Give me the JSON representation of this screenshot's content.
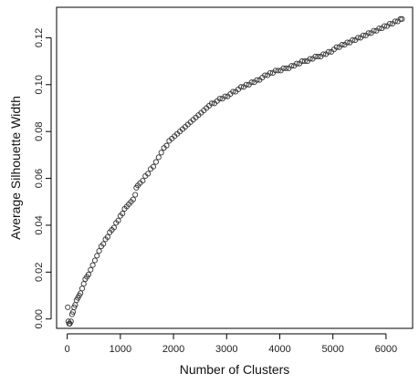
{
  "chart_data": {
    "type": "scatter",
    "title": "",
    "xlabel": "Number of Clusters",
    "ylabel": "Average Silhouette Width",
    "xlim": [
      -200,
      6500
    ],
    "ylim": [
      -0.004,
      0.133
    ],
    "x_ticks": [
      0,
      1000,
      2000,
      3000,
      4000,
      5000,
      6000
    ],
    "y_ticks": [
      0.0,
      0.02,
      0.04,
      0.06,
      0.08,
      0.1,
      0.12
    ],
    "x_tick_labels": [
      "0",
      "1000",
      "2000",
      "3000",
      "4000",
      "5000",
      "6000"
    ],
    "y_tick_labels": [
      "0.00",
      "0.02",
      "0.04",
      "0.06",
      "0.08",
      "0.10",
      "0.12"
    ],
    "grid": false,
    "legend": "none",
    "marker": "open-circle",
    "marker_color": "#333333",
    "series": [
      {
        "values": [
          [
            10,
            0.005
          ],
          [
            20,
            -0.001
          ],
          [
            35,
            -0.002
          ],
          [
            50,
            -0.002
          ],
          [
            70,
            -0.001
          ],
          [
            90,
            0.002
          ],
          [
            110,
            0.003
          ],
          [
            130,
            0.005
          ],
          [
            150,
            0.006
          ],
          [
            175,
            0.008
          ],
          [
            200,
            0.009
          ],
          [
            225,
            0.01
          ],
          [
            250,
            0.011
          ],
          [
            280,
            0.013
          ],
          [
            310,
            0.015
          ],
          [
            340,
            0.017
          ],
          [
            370,
            0.018
          ],
          [
            400,
            0.019
          ],
          [
            440,
            0.021
          ],
          [
            480,
            0.023
          ],
          [
            520,
            0.025
          ],
          [
            560,
            0.027
          ],
          [
            600,
            0.029
          ],
          [
            640,
            0.031
          ],
          [
            680,
            0.032
          ],
          [
            720,
            0.034
          ],
          [
            760,
            0.035
          ],
          [
            800,
            0.037
          ],
          [
            840,
            0.038
          ],
          [
            880,
            0.039
          ],
          [
            920,
            0.041
          ],
          [
            960,
            0.042
          ],
          [
            1000,
            0.044
          ],
          [
            1040,
            0.045
          ],
          [
            1080,
            0.047
          ],
          [
            1120,
            0.048
          ],
          [
            1160,
            0.049
          ],
          [
            1200,
            0.05
          ],
          [
            1240,
            0.051
          ],
          [
            1280,
            0.053
          ],
          [
            1300,
            0.056
          ],
          [
            1330,
            0.057
          ],
          [
            1370,
            0.058
          ],
          [
            1420,
            0.059
          ],
          [
            1470,
            0.061
          ],
          [
            1520,
            0.062
          ],
          [
            1570,
            0.064
          ],
          [
            1620,
            0.065
          ],
          [
            1670,
            0.067
          ],
          [
            1720,
            0.069
          ],
          [
            1770,
            0.071
          ],
          [
            1820,
            0.073
          ],
          [
            1870,
            0.074
          ],
          [
            1920,
            0.076
          ],
          [
            1970,
            0.077
          ],
          [
            2020,
            0.078
          ],
          [
            2070,
            0.079
          ],
          [
            2120,
            0.08
          ],
          [
            2170,
            0.081
          ],
          [
            2220,
            0.082
          ],
          [
            2270,
            0.083
          ],
          [
            2320,
            0.084
          ],
          [
            2370,
            0.085
          ],
          [
            2420,
            0.086
          ],
          [
            2470,
            0.087
          ],
          [
            2520,
            0.088
          ],
          [
            2570,
            0.089
          ],
          [
            2620,
            0.09
          ],
          [
            2670,
            0.091
          ],
          [
            2720,
            0.092
          ],
          [
            2770,
            0.092
          ],
          [
            2820,
            0.093
          ],
          [
            2870,
            0.094
          ],
          [
            2920,
            0.094
          ],
          [
            2970,
            0.095
          ],
          [
            3020,
            0.095
          ],
          [
            3070,
            0.096
          ],
          [
            3120,
            0.097
          ],
          [
            3170,
            0.097
          ],
          [
            3220,
            0.098
          ],
          [
            3270,
            0.099
          ],
          [
            3320,
            0.099
          ],
          [
            3370,
            0.1
          ],
          [
            3420,
            0.1
          ],
          [
            3470,
            0.101
          ],
          [
            3520,
            0.101
          ],
          [
            3570,
            0.102
          ],
          [
            3620,
            0.102
          ],
          [
            3670,
            0.103
          ],
          [
            3720,
            0.104
          ],
          [
            3770,
            0.104
          ],
          [
            3820,
            0.105
          ],
          [
            3870,
            0.105
          ],
          [
            3920,
            0.106
          ],
          [
            3970,
            0.106
          ],
          [
            4020,
            0.106
          ],
          [
            4070,
            0.107
          ],
          [
            4120,
            0.107
          ],
          [
            4170,
            0.107
          ],
          [
            4220,
            0.108
          ],
          [
            4270,
            0.108
          ],
          [
            4320,
            0.109
          ],
          [
            4370,
            0.109
          ],
          [
            4420,
            0.11
          ],
          [
            4470,
            0.11
          ],
          [
            4520,
            0.11
          ],
          [
            4570,
            0.111
          ],
          [
            4620,
            0.111
          ],
          [
            4670,
            0.112
          ],
          [
            4720,
            0.112
          ],
          [
            4770,
            0.112
          ],
          [
            4820,
            0.113
          ],
          [
            4870,
            0.113
          ],
          [
            4920,
            0.114
          ],
          [
            4970,
            0.114
          ],
          [
            5020,
            0.115
          ],
          [
            5070,
            0.116
          ],
          [
            5120,
            0.116
          ],
          [
            5170,
            0.117
          ],
          [
            5220,
            0.117
          ],
          [
            5270,
            0.118
          ],
          [
            5320,
            0.118
          ],
          [
            5370,
            0.119
          ],
          [
            5420,
            0.119
          ],
          [
            5470,
            0.12
          ],
          [
            5520,
            0.12
          ],
          [
            5570,
            0.121
          ],
          [
            5620,
            0.121
          ],
          [
            5670,
            0.122
          ],
          [
            5720,
            0.122
          ],
          [
            5770,
            0.123
          ],
          [
            5820,
            0.123
          ],
          [
            5870,
            0.124
          ],
          [
            5920,
            0.124
          ],
          [
            5970,
            0.125
          ],
          [
            6020,
            0.125
          ],
          [
            6070,
            0.126
          ],
          [
            6120,
            0.126
          ],
          [
            6170,
            0.127
          ],
          [
            6220,
            0.127
          ],
          [
            6270,
            0.128
          ],
          [
            6300,
            0.128
          ]
        ]
      }
    ]
  }
}
